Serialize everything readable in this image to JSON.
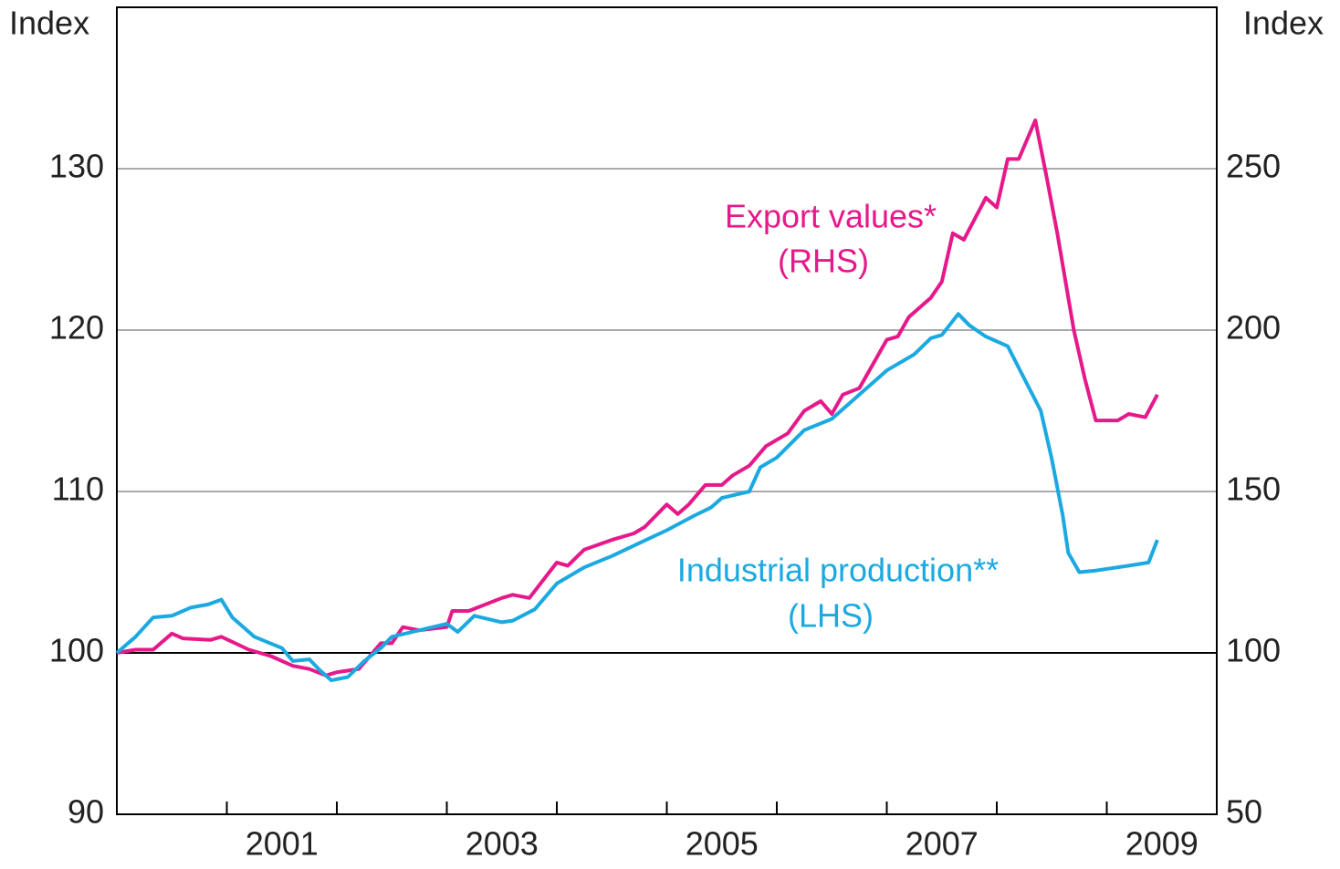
{
  "chart_data": {
    "type": "line",
    "ylabel": "Index",
    "y2label": "Index",
    "xlim": [
      2000,
      2010
    ],
    "xticks": [
      {
        "value": 2001.5,
        "label": "2001"
      },
      {
        "value": 2003.5,
        "label": "2003"
      },
      {
        "value": 2005.5,
        "label": "2005"
      },
      {
        "value": 2007.5,
        "label": "2007"
      },
      {
        "value": 2009.5,
        "label": "2009"
      }
    ],
    "xminor": [
      2001,
      2002,
      2003,
      2004,
      2005,
      2006,
      2007,
      2008,
      2009
    ],
    "ylim": [
      90,
      140
    ],
    "yticks": [
      90,
      100,
      110,
      120,
      130
    ],
    "y2lim": [
      50,
      300
    ],
    "y2ticks": [
      50,
      100,
      150,
      200,
      250
    ],
    "baseline": 100,
    "grid": true,
    "series": [
      {
        "name": "Export values*",
        "note": "(RHS)",
        "color": "#e6198a",
        "axis": "y2",
        "x": [
          2000.0,
          2000.17,
          2000.33,
          2000.5,
          2000.6,
          2000.85,
          2000.95,
          2001.2,
          2001.4,
          2001.6,
          2001.75,
          2001.9,
          2002.0,
          2002.2,
          2002.4,
          2002.5,
          2002.6,
          2002.75,
          2003.0,
          2003.05,
          2003.2,
          2003.5,
          2003.6,
          2003.75,
          2004.0,
          2004.1,
          2004.25,
          2004.5,
          2004.7,
          2004.8,
          2005.0,
          2005.1,
          2005.2,
          2005.35,
          2005.5,
          2005.6,
          2005.75,
          2005.9,
          2006.1,
          2006.25,
          2006.4,
          2006.5,
          2006.6,
          2006.75,
          2006.9,
          2007.0,
          2007.1,
          2007.2,
          2007.4,
          2007.5,
          2007.6,
          2007.7,
          2007.9,
          2008.0,
          2008.1,
          2008.2,
          2008.35,
          2008.45,
          2008.55,
          2008.7,
          2008.8,
          2008.9,
          2009.1,
          2009.2,
          2009.35,
          2009.46
        ],
        "values": [
          100,
          101,
          101,
          106,
          104.5,
          104,
          105,
          101,
          99,
          96,
          95,
          93,
          94,
          95,
          103,
          103,
          108,
          107,
          108,
          113,
          113,
          117,
          118,
          117,
          128,
          127,
          132,
          135,
          137,
          139,
          146,
          143,
          146,
          152,
          152,
          155,
          158,
          164,
          168,
          175,
          178,
          174,
          180,
          182,
          191,
          197,
          198,
          204,
          210,
          215,
          230,
          228,
          241,
          238,
          253,
          253,
          265,
          248,
          230,
          200,
          185,
          172,
          172,
          174,
          173,
          180
        ]
      },
      {
        "name": "Industrial production**",
        "note": "(LHS)",
        "color": "#1ba9e1",
        "axis": "y",
        "x": [
          2000.0,
          2000.17,
          2000.33,
          2000.5,
          2000.67,
          2000.83,
          2000.95,
          2001.05,
          2001.25,
          2001.5,
          2001.6,
          2001.75,
          2001.85,
          2001.95,
          2002.1,
          2002.25,
          2002.4,
          2002.5,
          2002.75,
          2003.0,
          2003.1,
          2003.25,
          2003.5,
          2003.6,
          2003.8,
          2004.0,
          2004.25,
          2004.5,
          2004.75,
          2005.0,
          2005.25,
          2005.4,
          2005.5,
          2005.75,
          2005.85,
          2006.0,
          2006.25,
          2006.5,
          2006.75,
          2007.0,
          2007.25,
          2007.4,
          2007.5,
          2007.65,
          2007.75,
          2007.9,
          2008.1,
          2008.25,
          2008.4,
          2008.5,
          2008.6,
          2008.65,
          2008.75,
          2008.9,
          2009.2,
          2009.38,
          2009.46
        ],
        "values": [
          100,
          101,
          102.2,
          102.3,
          102.8,
          103,
          103.3,
          102.2,
          101,
          100.3,
          99.5,
          99.6,
          98.9,
          98.3,
          98.5,
          99.5,
          100.3,
          101,
          101.4,
          101.8,
          101.3,
          102.3,
          101.9,
          102,
          102.7,
          104.3,
          105.3,
          106,
          106.8,
          107.6,
          108.5,
          109,
          109.6,
          110,
          111.5,
          112.1,
          113.8,
          114.5,
          116,
          117.5,
          118.5,
          119.5,
          119.7,
          121,
          120.3,
          119.6,
          119,
          117,
          115,
          112,
          108.5,
          106.2,
          105,
          105.1,
          105.4,
          105.6,
          107
        ]
      }
    ]
  }
}
